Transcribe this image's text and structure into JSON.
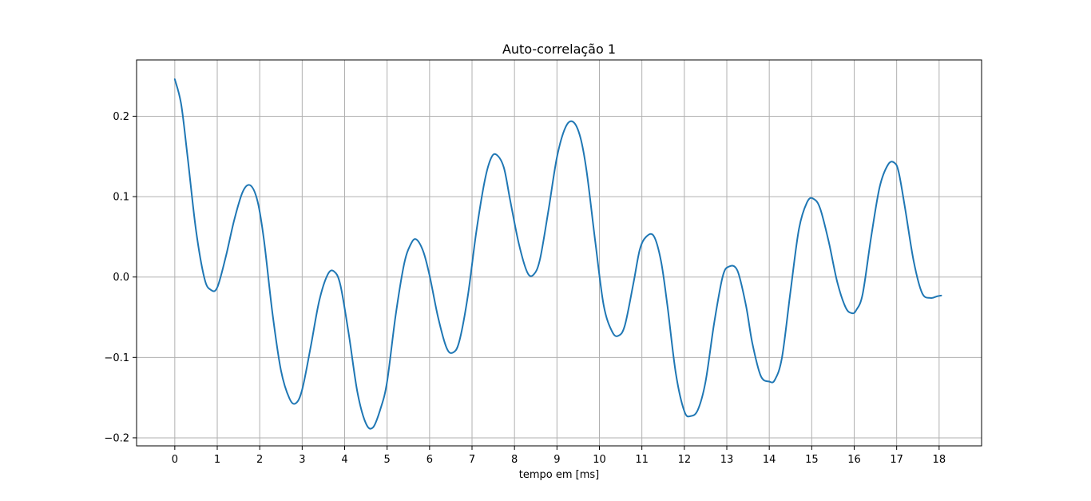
{
  "chart_data": {
    "type": "line",
    "title": "Auto-correlação 1",
    "xlabel": "tempo em [ms]",
    "ylabel": "",
    "xlim": [
      -0.9,
      19.0
    ],
    "ylim": [
      -0.21,
      0.27
    ],
    "x_ticks": [
      0,
      1,
      2,
      3,
      4,
      5,
      6,
      7,
      8,
      9,
      10,
      11,
      12,
      13,
      14,
      15,
      16,
      17,
      18
    ],
    "x_tick_labels": [
      "0",
      "1",
      "2",
      "3",
      "4",
      "5",
      "6",
      "7",
      "8",
      "9",
      "10",
      "11",
      "12",
      "13",
      "14",
      "15",
      "16",
      "17",
      "18"
    ],
    "y_ticks": [
      -0.2,
      -0.1,
      0.0,
      0.1,
      0.2
    ],
    "y_tick_labels": [
      "−0.2",
      "−0.1",
      "0.0",
      "0.1",
      "0.2"
    ],
    "grid": true,
    "legend": "none",
    "series_color": "#1f77b4",
    "series": [
      {
        "x": [
          0,
          0.15,
          0.3,
          0.5,
          0.7,
          0.85,
          1.0,
          1.2,
          1.4,
          1.6,
          1.78,
          1.95,
          2.1,
          2.3,
          2.5,
          2.7,
          2.85,
          3.0,
          3.2,
          3.4,
          3.6,
          3.75,
          3.9,
          4.1,
          4.3,
          4.5,
          4.67,
          4.85,
          5.0,
          5.2,
          5.4,
          5.55,
          5.68,
          5.85,
          6.0,
          6.2,
          6.4,
          6.55,
          6.7,
          6.9,
          7.1,
          7.3,
          7.45,
          7.58,
          7.75,
          7.9,
          8.1,
          8.3,
          8.45,
          8.6,
          8.8,
          9.0,
          9.2,
          9.38,
          9.55,
          9.7,
          9.9,
          10.1,
          10.3,
          10.45,
          10.6,
          10.8,
          10.95,
          11.1,
          11.28,
          11.45,
          11.6,
          11.8,
          12.0,
          12.15,
          12.32,
          12.5,
          12.7,
          12.9,
          13.05,
          13.25,
          13.45,
          13.6,
          13.8,
          14.0,
          14.13,
          14.3,
          14.5,
          14.7,
          14.9,
          15.05,
          15.2,
          15.4,
          15.6,
          15.8,
          15.95,
          16.05,
          16.2,
          16.4,
          16.6,
          16.8,
          16.95,
          17.05,
          17.2,
          17.4,
          17.6,
          17.8,
          17.95,
          18.05
        ],
        "y": [
          0.246,
          0.215,
          0.15,
          0.058,
          -0.002,
          -0.016,
          -0.013,
          0.025,
          0.071,
          0.106,
          0.114,
          0.094,
          0.046,
          -0.045,
          -0.116,
          -0.151,
          -0.157,
          -0.14,
          -0.087,
          -0.03,
          0.003,
          0.007,
          -0.01,
          -0.072,
          -0.143,
          -0.182,
          -0.187,
          -0.163,
          -0.13,
          -0.048,
          0.016,
          0.04,
          0.047,
          0.032,
          0.002,
          -0.05,
          -0.088,
          -0.094,
          -0.08,
          -0.024,
          0.056,
          0.12,
          0.148,
          0.152,
          0.136,
          0.095,
          0.042,
          0.006,
          0.003,
          0.022,
          0.083,
          0.149,
          0.186,
          0.193,
          0.174,
          0.131,
          0.045,
          -0.035,
          -0.068,
          -0.073,
          -0.06,
          -0.008,
          0.034,
          0.05,
          0.051,
          0.02,
          -0.035,
          -0.12,
          -0.167,
          -0.173,
          -0.165,
          -0.13,
          -0.058,
          0.0,
          0.013,
          0.008,
          -0.035,
          -0.082,
          -0.123,
          -0.13,
          -0.128,
          -0.1,
          -0.018,
          0.06,
          0.094,
          0.097,
          0.085,
          0.044,
          -0.006,
          -0.038,
          -0.045,
          -0.041,
          -0.021,
          0.05,
          0.112,
          0.14,
          0.142,
          0.13,
          0.085,
          0.02,
          -0.02,
          -0.026,
          -0.024,
          -0.023
        ]
      }
    ]
  }
}
